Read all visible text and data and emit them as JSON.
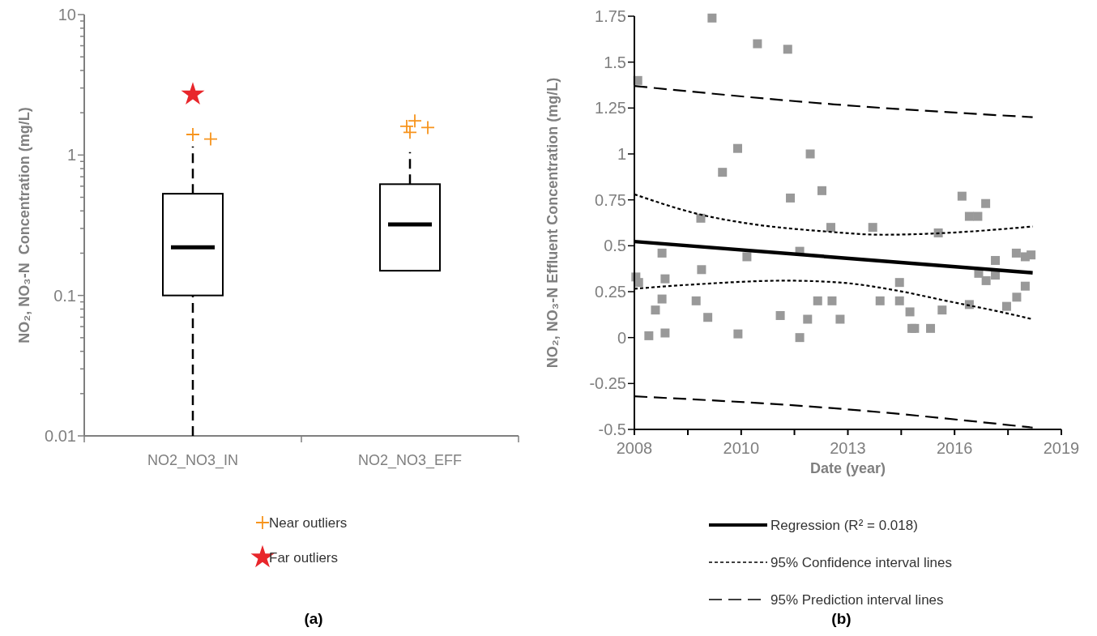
{
  "chart_data": [
    {
      "type": "box",
      "ylabel": "NO₂, NO₃-N  Concentration (mg/L)",
      "categories": [
        "NO2_NO3_IN",
        "NO2_NO3_EFF"
      ],
      "boxes": [
        {
          "low": 0.01,
          "q1": 0.1,
          "median": 0.22,
          "q3": 0.53,
          "high": 1.15
        },
        {
          "low": 0.15,
          "q1": 0.15,
          "median": 0.32,
          "q3": 0.62,
          "high": 1.05
        }
      ],
      "series": [
        {
          "name": "Near outliers",
          "type": "scatter",
          "marker": "cross",
          "color": "#f7941d",
          "x": [
            "NO2_NO3_IN",
            "NO2_NO3_IN",
            "NO2_NO3_EFF",
            "NO2_NO3_EFF",
            "NO2_NO3_EFF",
            "NO2_NO3_EFF"
          ],
          "values": [
            1.4,
            1.3,
            1.45,
            1.57,
            1.75,
            1.6
          ]
        },
        {
          "name": "Far outliers",
          "type": "scatter",
          "marker": "star",
          "color": "#e8262b",
          "x": [
            "NO2_NO3_IN"
          ],
          "values": [
            2.7
          ]
        }
      ],
      "log": "y",
      "ylim": [
        0.01,
        10
      ],
      "yticks": [
        0.01,
        {
          "value": 0.02,
          "label": null
        },
        {
          "value": 0.03,
          "label": null
        },
        {
          "value": 0.04,
          "label": null
        },
        {
          "value": 0.05,
          "label": null
        },
        {
          "value": 0.06,
          "label": null
        },
        {
          "value": 0.07,
          "label": null
        },
        {
          "value": 0.08,
          "label": null
        },
        {
          "value": 0.09,
          "label": null
        },
        0.1,
        {
          "value": 0.2,
          "label": null
        },
        {
          "value": 0.3,
          "label": null
        },
        {
          "value": 0.4,
          "label": null
        },
        {
          "value": 0.5,
          "label": null
        },
        {
          "value": 0.6,
          "label": null
        },
        {
          "value": 0.7,
          "label": null
        },
        {
          "value": 0.8,
          "label": null
        },
        {
          "value": 0.9,
          "label": null
        },
        1,
        {
          "value": 2,
          "label": null
        },
        {
          "value": 3,
          "label": null
        },
        {
          "value": 4,
          "label": null
        },
        {
          "value": 5,
          "label": null
        },
        {
          "value": 6,
          "label": null
        },
        {
          "value": 7,
          "label": null
        },
        {
          "value": 8,
          "label": null
        },
        {
          "value": 9,
          "label": null
        },
        10
      ],
      "legend": "bottom",
      "annotations": [
        "(a)"
      ]
    },
    {
      "type": "scatter",
      "xlabel": "Date (year)",
      "ylabel": "NO₂, NO₃-N Effluent Concentration (mg/L)",
      "series": [
        {
          "type": "scatter",
          "marker": "square",
          "color": "#999999",
          "x": [
            "2008-01-15",
            "2008-02-02",
            "2008-02-10",
            "2008-05-16",
            "2008-07-17",
            "2008-09-17",
            "2008-09-17",
            "2008-10-16",
            "2008-10-16",
            "2009-08-04",
            "2009-09-17",
            "2009-09-24",
            "2009-11-22",
            "2010-01-01",
            "2010-04-09",
            "2010-08-30",
            "2010-09-02",
            "2010-11-25",
            "2011-03-04",
            "2011-10-05",
            "2011-12-14",
            "2012-01-08",
            "2012-04-05",
            "2012-04-05",
            "2012-06-18",
            "2012-07-13",
            "2012-09-21",
            "2012-10-31",
            "2013-01-23",
            "2013-02-03",
            "2013-04-20",
            "2014-02-21",
            "2014-05-01",
            "2014-10-31",
            "2014-10-31",
            "2015-02-06",
            "2015-02-25",
            "2015-03-22",
            "2015-08-19",
            "2015-10-31",
            "2015-12-06",
            "2016-06-10",
            "2016-08-18",
            "2016-08-18",
            "2016-11-06",
            "2016-11-14",
            "2017-01-19",
            "2017-01-23",
            "2017-04-20",
            "2017-04-20",
            "2017-08-04",
            "2017-11-03",
            "2017-11-07",
            "2018-01-26",
            "2018-01-26",
            "2018-03-22"
          ],
          "values": [
            0.33,
            1.4,
            0.3,
            0.01,
            0.15,
            0.46,
            0.21,
            0.32,
            0.025,
            0.2,
            0.65,
            0.37,
            0.11,
            1.74,
            0.9,
            1.03,
            0.02,
            0.44,
            1.6,
            0.12,
            1.57,
            0.76,
            0.47,
            0.0,
            0.1,
            1.0,
            0.2,
            0.8,
            0.6,
            0.2,
            0.1,
            0.6,
            0.2,
            0.2,
            0.3,
            0.14,
            0.05,
            0.05,
            0.05,
            0.57,
            0.15,
            0.77,
            0.18,
            0.66,
            0.66,
            0.35,
            0.73,
            0.31,
            0.42,
            0.34,
            0.17,
            0.46,
            0.22,
            0.44,
            0.28,
            0.45
          ]
        },
        {
          "name": "Regression (R² = 0.018)",
          "type": "line",
          "line_style": "solid",
          "color": "#000000",
          "x": [
            "2008-01-01",
            "2018-04-06"
          ],
          "values": [
            0.523,
            0.353
          ]
        },
        {
          "name": "95% Confidence interval lines",
          "type": "line",
          "line_style": "dotted",
          "color": "#000000",
          "x": [
            "2008-01-01",
            "2009-09-13",
            "2010-12-21",
            "2012-10-19",
            "2014-05-27",
            "2016-01-15",
            "2018-04-06"
          ],
          "values": [
            0.78,
            0.67,
            0.62,
            0.58,
            0.56,
            0.57,
            0.605
          ]
        },
        {
          "type": "line",
          "line_style": "dotted",
          "color": "#000000",
          "x": [
            "2008-01-01",
            "2009-08-04",
            "2011-11-25",
            "2013-04-13",
            "2014-08-30",
            "2016-01-15",
            "2017-06-07",
            "2018-04-06"
          ],
          "values": [
            0.266,
            0.29,
            0.31,
            0.3,
            0.26,
            0.2,
            0.14,
            0.1
          ]
        },
        {
          "name": "95% Prediction interval lines",
          "type": "line",
          "line_style": "dashed",
          "color": "#000000",
          "x": [
            "2008-01-01",
            "2013-02-21",
            "2018-04-06"
          ],
          "values": [
            1.37,
            1.27,
            1.2
          ]
        },
        {
          "type": "line",
          "line_style": "dashed",
          "color": "#000000",
          "x": [
            "2008-01-01",
            "2013-02-21",
            "2018-04-06"
          ],
          "values": [
            -0.32,
            -0.385,
            -0.49
          ]
        }
      ],
      "xlim": [
        "2008-01-01",
        "2019-01-01"
      ],
      "xticks": [
        {
          "value": "2008-01-01",
          "label": "2008"
        },
        {
          "value": "2009-05-18",
          "label": null
        },
        {
          "value": "2010-10-02",
          "label": "2010"
        },
        {
          "value": "2012-02-15",
          "label": null
        },
        {
          "value": "2013-07-02",
          "label": "2013"
        },
        {
          "value": "2014-11-16",
          "label": null
        },
        {
          "value": "2016-04-01",
          "label": "2016"
        },
        {
          "value": "2017-08-17",
          "label": null
        },
        {
          "value": "2019-01-01",
          "label": "2019"
        }
      ],
      "ylim": [
        -0.5,
        1.75
      ],
      "yticks": [
        -0.5,
        -0.25,
        0,
        0.25,
        0.5,
        0.75,
        1,
        1.25,
        1.5,
        1.75
      ],
      "legend": "bottom",
      "annotations": [
        "(b)"
      ]
    }
  ]
}
